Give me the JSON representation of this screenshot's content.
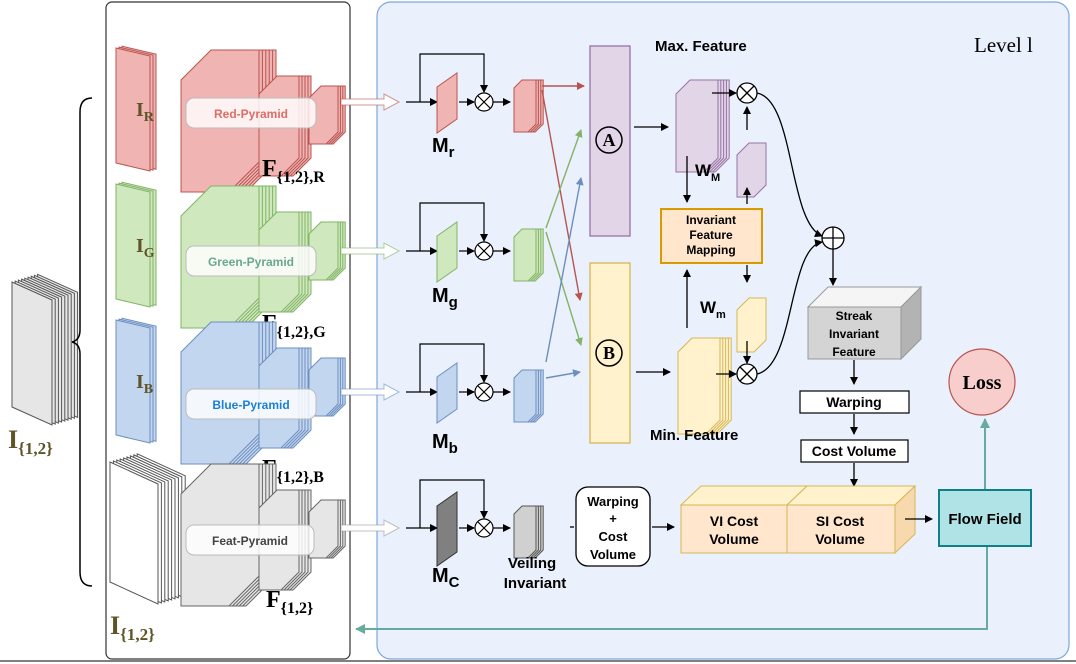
{
  "input_label": {
    "main": "I",
    "sub": "{1,2}"
  },
  "bottom_input_label": {
    "main": "I",
    "sub": "{1,2}"
  },
  "level_label": "Level l",
  "pyramids": [
    {
      "id": "red",
      "image_main": "I",
      "image_sub": "R",
      "pill": "Red-Pyramid",
      "feat_main": "F",
      "feat_sub": "{1,2},R",
      "mask_main": "M",
      "mask_sub": "r",
      "color": "#b85450",
      "fill": "#f0b5b3"
    },
    {
      "id": "green",
      "image_main": "I",
      "image_sub": "G",
      "pill": "Green-Pyramid",
      "feat_main": "F",
      "feat_sub": "{1,2},G",
      "mask_main": "M",
      "mask_sub": "g",
      "color": "#82b366",
      "fill": "#cfe8bd"
    },
    {
      "id": "blue",
      "image_main": "I",
      "image_sub": "B",
      "pill": "Blue-Pyramid",
      "feat_main": "F",
      "feat_sub": "{1,2},B",
      "mask_main": "M",
      "mask_sub": "b",
      "color": "#6c8ebf",
      "fill": "#c3d6f0"
    },
    {
      "id": "gray",
      "image_main": "",
      "image_sub": "",
      "pill": "Feat-Pyramid",
      "feat_main": "F",
      "feat_sub": "{1,2}",
      "mask_main": "M",
      "mask_sub": "C",
      "color": "#666666",
      "fill": "#e6e6e6"
    }
  ],
  "pill_colors": [
    "#e06c66",
    "#6aa88c",
    "#1a7fd6",
    "#444444"
  ],
  "node_a": "A",
  "node_b": "B",
  "max_feature": "Max. Feature",
  "min_feature": "Min. Feature",
  "wm_upper": {
    "main": "W",
    "sub": "M"
  },
  "wm_lower": {
    "main": "W",
    "sub": "m"
  },
  "invariant_mapping": [
    "Invariant",
    "Feature",
    "Mapping"
  ],
  "streak": [
    "Streak",
    "Invariant",
    "Feature"
  ],
  "warping": "Warping",
  "cost_volume": "Cost Volume",
  "warp_cost": [
    "Warping",
    "+",
    "Cost",
    "Volume"
  ],
  "veiling": [
    "Veiling",
    "Invariant"
  ],
  "vi_cost": [
    "VI Cost",
    "Volume"
  ],
  "si_cost": [
    "SI Cost",
    "Volume"
  ],
  "flow_field": "Flow Field",
  "loss": "Loss"
}
